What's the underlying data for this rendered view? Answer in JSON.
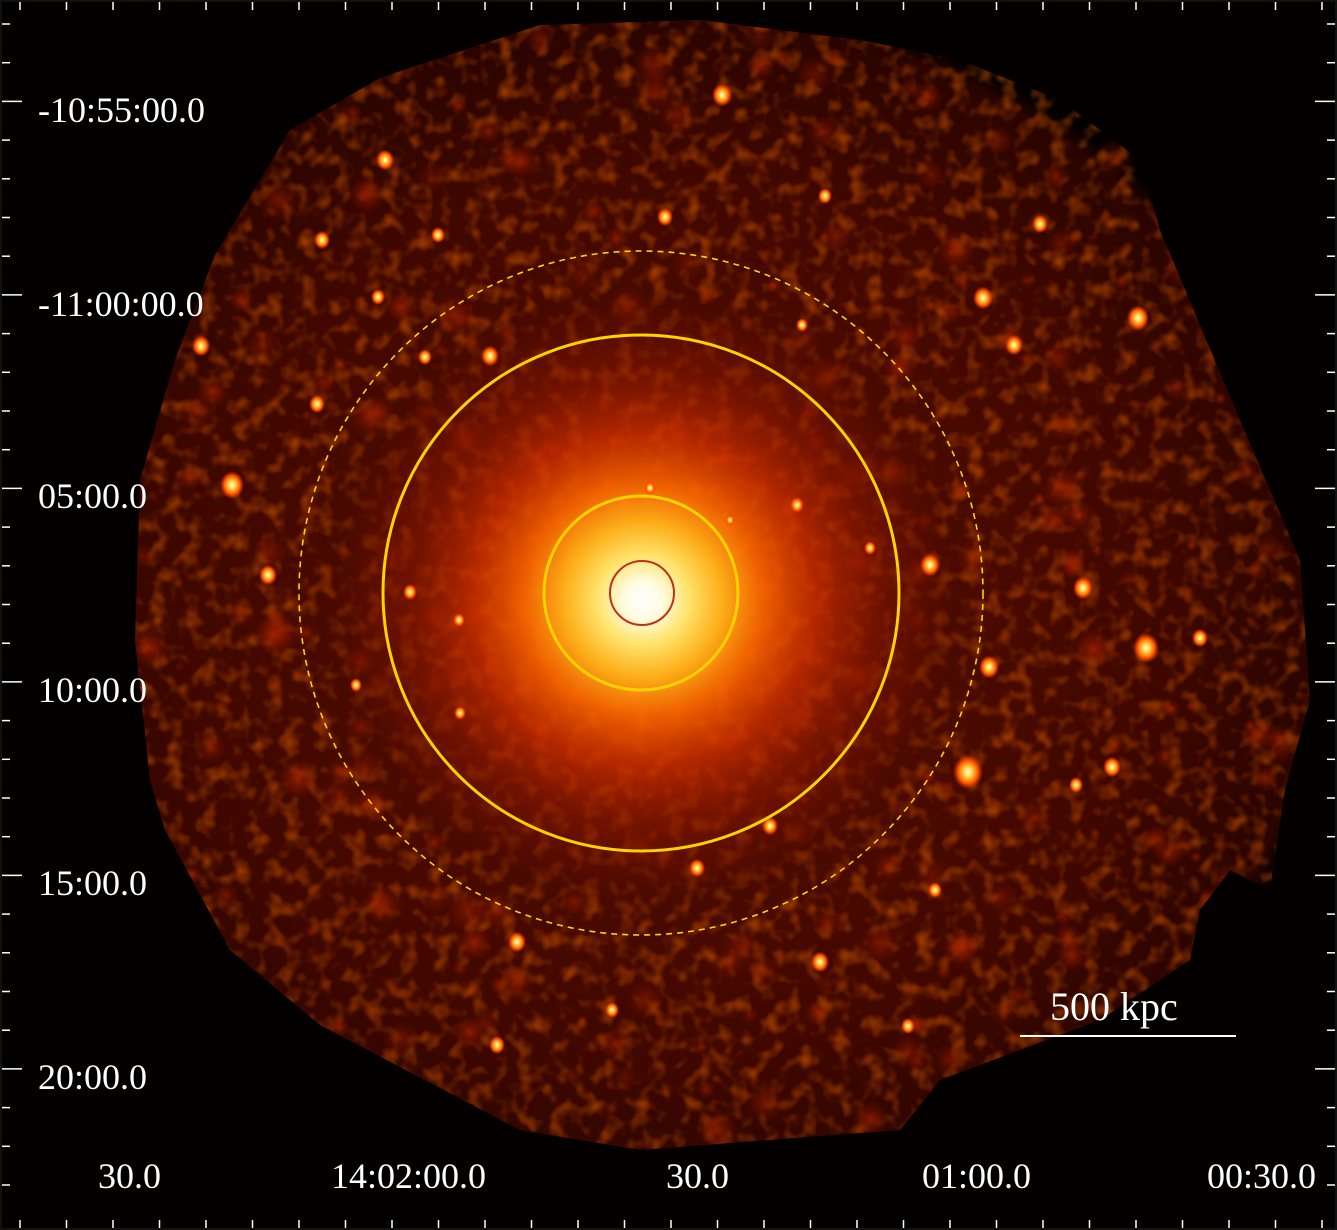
{
  "image": {
    "description_type": "x-ray-cluster-image",
    "colormap": "heat",
    "background_color": "#050000",
    "overlay_color": "#ffd200",
    "inner_core_circle_color": "#c0301a"
  },
  "axes": {
    "dec_labels": [
      "-10:55:00.0",
      "-11:00:00.0",
      "05:00.0",
      "10:00.0",
      "15:00.0",
      "20:00.0"
    ],
    "ra_labels": [
      "30.0",
      "14:02:00.0",
      "30.0",
      "01:00.0",
      "00:30.0"
    ]
  },
  "scalebar": {
    "label": "500 kpc"
  }
}
